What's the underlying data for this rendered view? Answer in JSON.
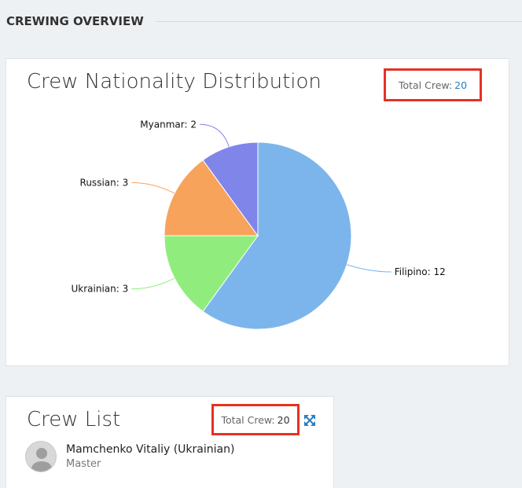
{
  "header": {
    "title": "CREWING OVERVIEW"
  },
  "nationality_card": {
    "title": "Crew Nationality Distribution",
    "total_label": "Total Crew:",
    "total_value": "20"
  },
  "chart_data": {
    "type": "pie",
    "title": "Crew Nationality Distribution",
    "slices": [
      {
        "name": "Filipino",
        "value": 12,
        "label": "Filipino: 12",
        "color": "#7cb5ec"
      },
      {
        "name": "Ukrainian",
        "value": 3,
        "label": "Ukrainian: 3",
        "color": "#90ed7d"
      },
      {
        "name": "Russian",
        "value": 3,
        "label": "Russian: 3",
        "color": "#f7a35c"
      },
      {
        "name": "Myanmar",
        "value": 2,
        "label": "Myanmar: 2",
        "color": "#8085e9"
      }
    ],
    "legend": "none",
    "data_labels": "outside-with-connectors"
  },
  "crew_list_card": {
    "title": "Crew List",
    "total_label": "Total Crew:",
    "total_value": "20",
    "expand_icon": "expand-arrows-icon",
    "items": [
      {
        "name": "Mamchenko Vitaliy (Ukrainian)",
        "rank": "Master"
      }
    ]
  }
}
